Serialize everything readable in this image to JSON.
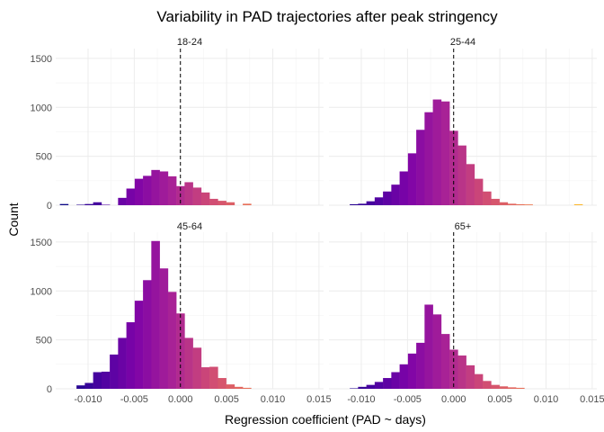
{
  "chart_data": {
    "type": "histogram",
    "title": "Variability in PAD trajectories after peak stringency",
    "xlabel": "Regression coefficient (PAD ~ days)",
    "ylabel": "Count",
    "xlim": [
      -0.0135,
      0.0155
    ],
    "ylim": [
      0,
      1600
    ],
    "x_ticks": [
      -0.01,
      -0.005,
      0.0,
      0.005,
      0.01,
      0.015
    ],
    "x_tick_labels": [
      "-0.010",
      "-0.005",
      "0.000",
      "0.005",
      "0.010",
      "0.015"
    ],
    "y_ticks": [
      0,
      500,
      1000,
      1500
    ],
    "y_tick_labels": [
      "0",
      "500",
      "1000",
      "1500"
    ],
    "bin_width": 0.0009,
    "reference_line_x": 0.0,
    "grid": true,
    "fill_palette": "plasma (purple to orange by x)",
    "panels": [
      {
        "label": "18-24",
        "bins": [
          {
            "x": -0.0126,
            "count": 12
          },
          {
            "x": -0.0108,
            "count": 5
          },
          {
            "x": -0.0099,
            "count": 12
          },
          {
            "x": -0.009,
            "count": 30
          },
          {
            "x": -0.0081,
            "count": 5
          },
          {
            "x": -0.0063,
            "count": 75
          },
          {
            "x": -0.0054,
            "count": 170
          },
          {
            "x": -0.0045,
            "count": 270
          },
          {
            "x": -0.0036,
            "count": 300
          },
          {
            "x": -0.0027,
            "count": 360
          },
          {
            "x": -0.0018,
            "count": 345
          },
          {
            "x": -0.0009,
            "count": 295
          },
          {
            "x": 0.0,
            "count": 195
          },
          {
            "x": 0.0009,
            "count": 235
          },
          {
            "x": 0.0018,
            "count": 180
          },
          {
            "x": 0.0027,
            "count": 130
          },
          {
            "x": 0.0036,
            "count": 65
          },
          {
            "x": 0.0045,
            "count": 45
          },
          {
            "x": 0.0054,
            "count": 30
          },
          {
            "x": 0.0072,
            "count": 15
          }
        ]
      },
      {
        "label": "25-44",
        "bins": [
          {
            "x": -0.0108,
            "count": 10
          },
          {
            "x": -0.0099,
            "count": 15
          },
          {
            "x": -0.009,
            "count": 40
          },
          {
            "x": -0.0081,
            "count": 80
          },
          {
            "x": -0.0072,
            "count": 140
          },
          {
            "x": -0.0063,
            "count": 210
          },
          {
            "x": -0.0054,
            "count": 345
          },
          {
            "x": -0.0045,
            "count": 530
          },
          {
            "x": -0.0036,
            "count": 770
          },
          {
            "x": -0.0027,
            "count": 950
          },
          {
            "x": -0.0018,
            "count": 1080
          },
          {
            "x": -0.0009,
            "count": 1060
          },
          {
            "x": 0.0,
            "count": 760
          },
          {
            "x": 0.0009,
            "count": 610
          },
          {
            "x": 0.0018,
            "count": 420
          },
          {
            "x": 0.0027,
            "count": 270
          },
          {
            "x": 0.0036,
            "count": 140
          },
          {
            "x": 0.0045,
            "count": 65
          },
          {
            "x": 0.0054,
            "count": 30
          },
          {
            "x": 0.0063,
            "count": 15
          },
          {
            "x": 0.0072,
            "count": 10
          },
          {
            "x": 0.0081,
            "count": 8
          },
          {
            "x": 0.0135,
            "count": 10
          }
        ]
      },
      {
        "label": "45-64",
        "bins": [
          {
            "x": -0.0108,
            "count": 35
          },
          {
            "x": -0.0099,
            "count": 60
          },
          {
            "x": -0.009,
            "count": 170
          },
          {
            "x": -0.0081,
            "count": 175
          },
          {
            "x": -0.0072,
            "count": 350
          },
          {
            "x": -0.0063,
            "count": 520
          },
          {
            "x": -0.0054,
            "count": 680
          },
          {
            "x": -0.0045,
            "count": 900
          },
          {
            "x": -0.0036,
            "count": 1110
          },
          {
            "x": -0.0027,
            "count": 1510
          },
          {
            "x": -0.0018,
            "count": 1230
          },
          {
            "x": -0.0009,
            "count": 990
          },
          {
            "x": 0.0,
            "count": 770
          },
          {
            "x": 0.0009,
            "count": 520
          },
          {
            "x": 0.0018,
            "count": 420
          },
          {
            "x": 0.0027,
            "count": 220
          },
          {
            "x": 0.0036,
            "count": 225
          },
          {
            "x": 0.0045,
            "count": 110
          },
          {
            "x": 0.0054,
            "count": 45
          },
          {
            "x": 0.0063,
            "count": 20
          },
          {
            "x": 0.0072,
            "count": 10
          }
        ]
      },
      {
        "label": "65+",
        "bins": [
          {
            "x": -0.0108,
            "count": 5
          },
          {
            "x": -0.0099,
            "count": 20
          },
          {
            "x": -0.009,
            "count": 40
          },
          {
            "x": -0.0081,
            "count": 70
          },
          {
            "x": -0.0072,
            "count": 110
          },
          {
            "x": -0.0063,
            "count": 170
          },
          {
            "x": -0.0054,
            "count": 250
          },
          {
            "x": -0.0045,
            "count": 360
          },
          {
            "x": -0.0036,
            "count": 470
          },
          {
            "x": -0.0027,
            "count": 860
          },
          {
            "x": -0.0018,
            "count": 760
          },
          {
            "x": -0.0009,
            "count": 560
          },
          {
            "x": 0.0,
            "count": 400
          },
          {
            "x": 0.0009,
            "count": 340
          },
          {
            "x": 0.0018,
            "count": 240
          },
          {
            "x": 0.0027,
            "count": 150
          },
          {
            "x": 0.0036,
            "count": 80
          },
          {
            "x": 0.0045,
            "count": 40
          },
          {
            "x": 0.0054,
            "count": 25
          },
          {
            "x": 0.0063,
            "count": 15
          },
          {
            "x": 0.0072,
            "count": 10
          }
        ]
      }
    ]
  }
}
